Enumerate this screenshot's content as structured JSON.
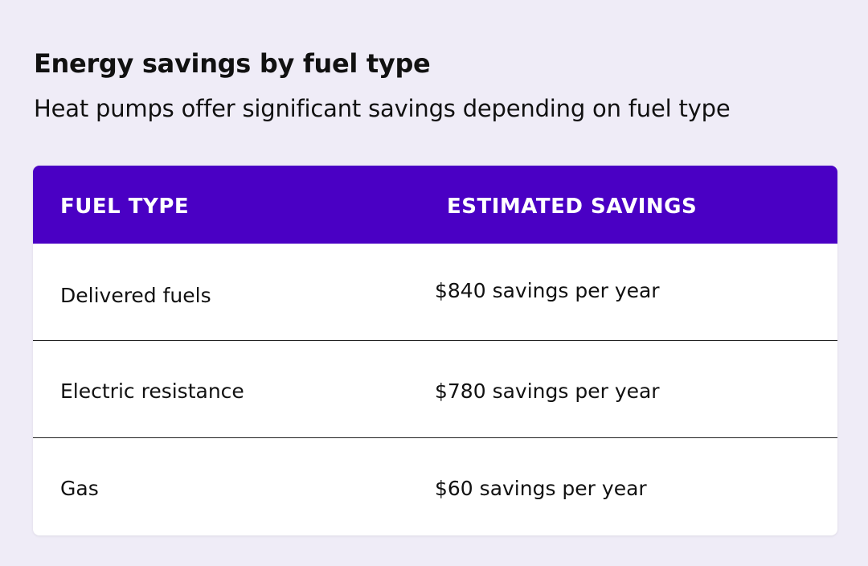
{
  "title": "Energy savings by fuel type",
  "subtitle": "Heat pumps offer significant savings depending on fuel type",
  "table": {
    "header_color": "#4a00c4",
    "columns": [
      "FUEL TYPE",
      "ESTIMATED SAVINGS"
    ],
    "rows": [
      [
        "Delivered fuels",
        "$840 savings per year"
      ],
      [
        "Electric resistance",
        "$780 savings per year"
      ],
      [
        "Gas",
        "$60 savings per year"
      ]
    ]
  }
}
